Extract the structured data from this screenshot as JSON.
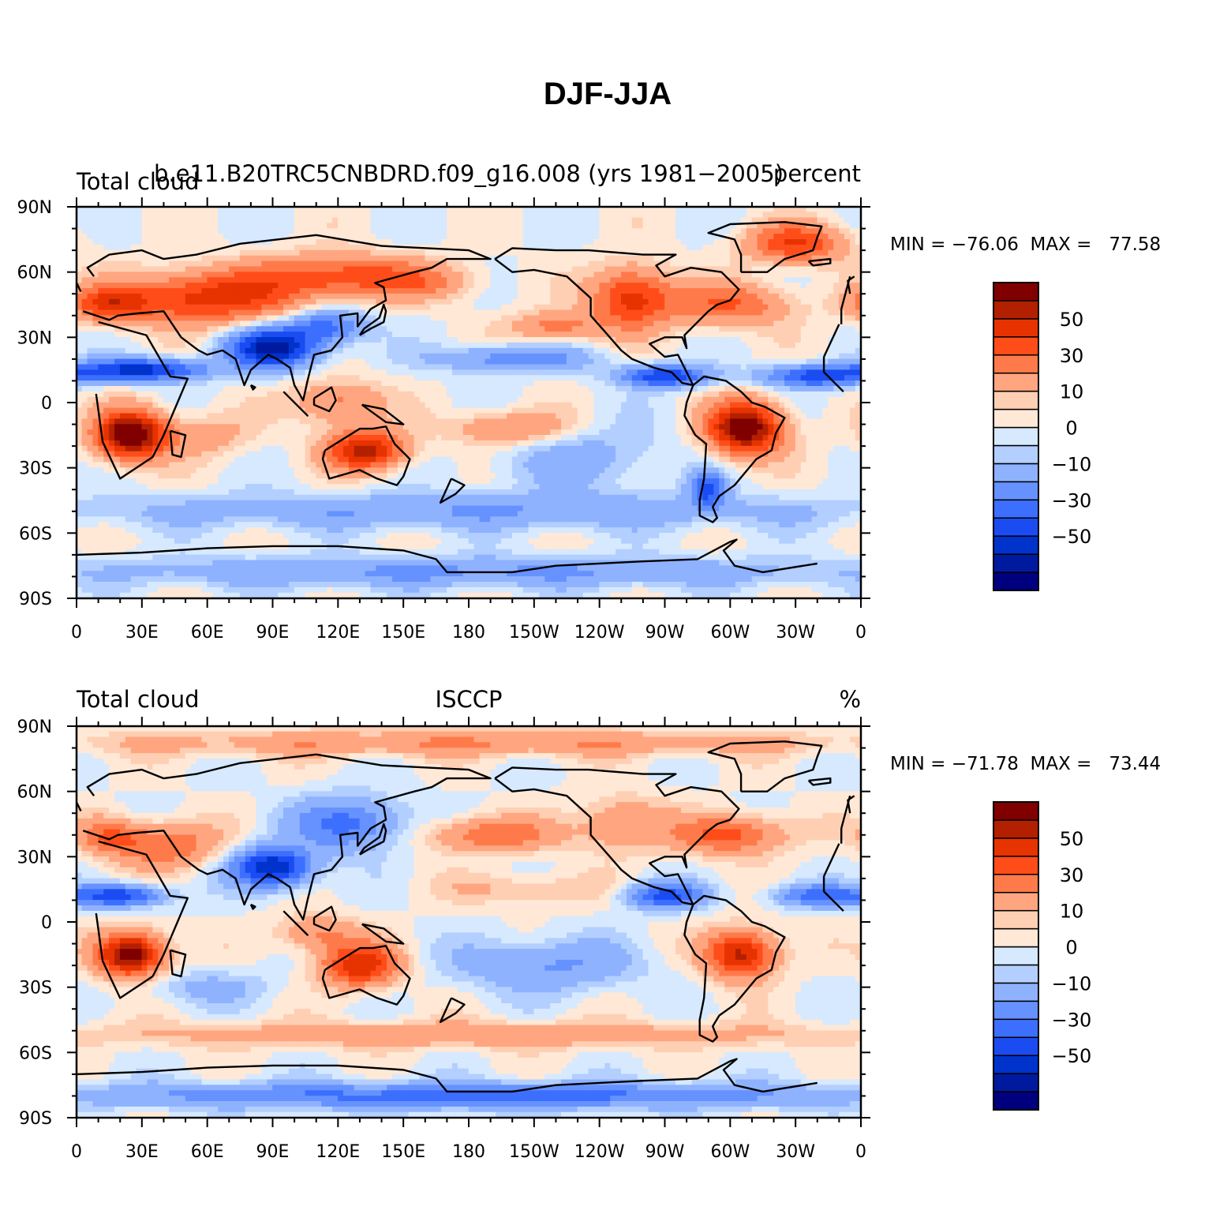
{
  "figure": {
    "title": "DJF-JJA",
    "levels": [
      -70,
      -60,
      -50,
      -40,
      -30,
      -20,
      -10,
      -5,
      0,
      5,
      10,
      20,
      30,
      40,
      50,
      60,
      70
    ],
    "colorbar_colors": [
      "#00007f",
      "#001a9f",
      "#0033cc",
      "#1a4cf2",
      "#3d6fff",
      "#6692ff",
      "#8fb2ff",
      "#b3cfff",
      "#d6e9ff",
      "#ffe8d6",
      "#ffcfb3",
      "#ffa680",
      "#ff7a4a",
      "#ff4d1a",
      "#e63300",
      "#b32000",
      "#800000"
    ],
    "colorbar_tick_labels": [
      "50",
      "30",
      "10",
      "0",
      "−10",
      "−30",
      "−50"
    ],
    "lon_ticks": [
      "0",
      "30E",
      "60E",
      "90E",
      "120E",
      "150E",
      "180",
      "150W",
      "120W",
      "90W",
      "60W",
      "30W",
      "0"
    ],
    "lat_ticks": [
      "90N",
      "60N",
      "30N",
      "0",
      "30S",
      "60S",
      "90S"
    ]
  },
  "panels": [
    {
      "left_label": "Total cloud",
      "center_label": "b.e11.B20TRC5CNBDRD.f09_g16.008 (yrs 1981−2005)",
      "right_label": "percent",
      "stats": "MIN = −76.06  MAX =   77.58",
      "min": -76.06,
      "max": 77.58
    },
    {
      "left_label": "Total cloud",
      "center_label": "ISCCP",
      "right_label": "%",
      "stats": "MIN = −71.78  MAX =   73.44",
      "min": -71.78,
      "max": 73.44
    }
  ]
}
